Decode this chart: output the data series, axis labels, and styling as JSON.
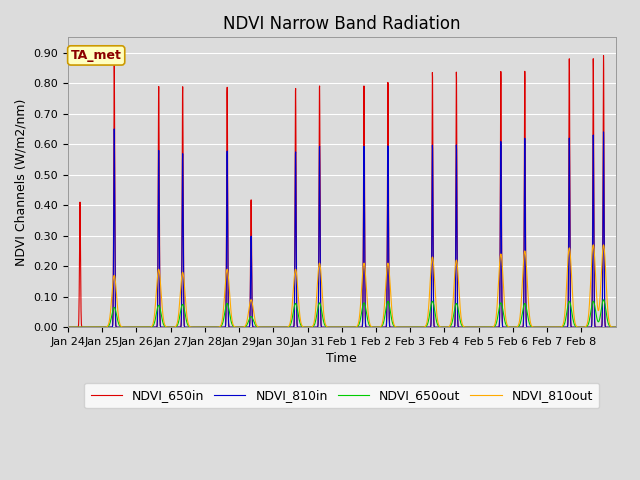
{
  "title": "NDVI Narrow Band Radiation",
  "ylabel": "NDVI Channels (W/m2/nm)",
  "xlabel": "Time",
  "legend_label": "TA_met",
  "line_labels": [
    "NDVI_650in",
    "NDVI_810in",
    "NDVI_650out",
    "NDVI_810out"
  ],
  "line_colors": [
    "#dd0000",
    "#0000cc",
    "#00cc00",
    "#ffaa00"
  ],
  "ylim": [
    0.0,
    0.95
  ],
  "yticks": [
    0.0,
    0.1,
    0.2,
    0.3,
    0.4,
    0.5,
    0.6,
    0.7,
    0.8,
    0.9
  ],
  "bg_color": "#dcdcdc",
  "grid_color": "#ffffff",
  "days": [
    "Jan 24",
    "Jan 25",
    "Jan 26",
    "Jan 27",
    "Jan 28",
    "Jan 29",
    "Jan 30",
    "Jan 31",
    "Feb 1",
    "Feb 2",
    "Feb 3",
    "Feb 4",
    "Feb 5",
    "Feb 6",
    "Feb 7",
    "Feb 8"
  ],
  "peak1_650in": [
    0.41,
    0.86,
    0.0,
    0.79,
    0.0,
    0.42,
    0.0,
    0.8,
    0.0,
    0.81,
    0.0,
    0.84,
    0.0,
    0.84,
    0.0,
    0.88
  ],
  "peak2_650in": [
    0.0,
    0.0,
    0.79,
    0.0,
    0.79,
    0.0,
    0.79,
    0.0,
    0.8,
    0.0,
    0.84,
    0.0,
    0.84,
    0.0,
    0.88,
    0.89
  ],
  "peak1_810in": [
    0.0,
    0.65,
    0.0,
    0.57,
    0.0,
    0.3,
    0.0,
    0.6,
    0.0,
    0.6,
    0.0,
    0.6,
    0.0,
    0.62,
    0.0,
    0.63
  ],
  "peak2_810in": [
    0.0,
    0.0,
    0.58,
    0.0,
    0.58,
    0.0,
    0.58,
    0.0,
    0.6,
    0.0,
    0.6,
    0.0,
    0.61,
    0.0,
    0.62,
    0.64
  ],
  "peak1_650out": [
    0.0,
    0.065,
    0.0,
    0.075,
    0.0,
    0.035,
    0.0,
    0.08,
    0.0,
    0.085,
    0.0,
    0.078,
    0.0,
    0.078,
    0.0,
    0.085
  ],
  "peak2_650out": [
    0.0,
    0.0,
    0.072,
    0.0,
    0.078,
    0.0,
    0.078,
    0.0,
    0.08,
    0.0,
    0.085,
    0.0,
    0.08,
    0.0,
    0.085,
    0.09
  ],
  "peak1_810out": [
    0.0,
    0.17,
    0.0,
    0.18,
    0.0,
    0.09,
    0.0,
    0.21,
    0.0,
    0.21,
    0.0,
    0.22,
    0.0,
    0.25,
    0.0,
    0.27
  ],
  "peak2_810out": [
    0.0,
    0.0,
    0.19,
    0.0,
    0.19,
    0.0,
    0.19,
    0.0,
    0.21,
    0.0,
    0.23,
    0.0,
    0.24,
    0.0,
    0.26,
    0.27
  ],
  "title_fontsize": 12,
  "label_fontsize": 9,
  "tick_fontsize": 8,
  "legend_fontsize": 9
}
